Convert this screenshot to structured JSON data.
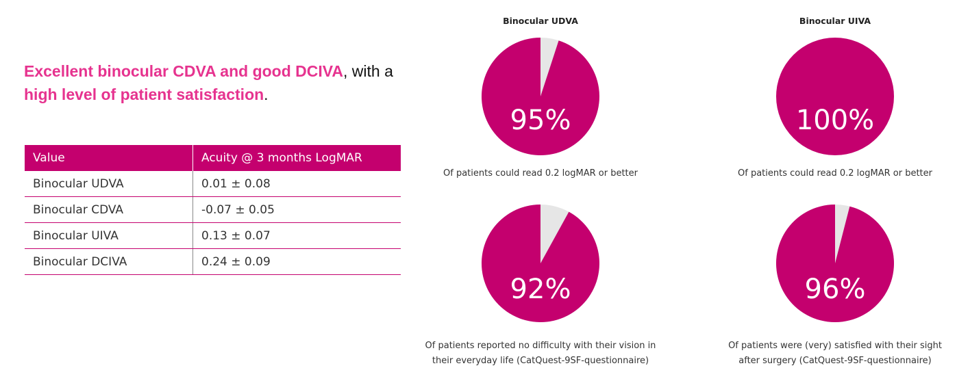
{
  "headline": {
    "part1_highlight": "Excellent binocular CDVA and good DCIVA",
    "part2_plain": ", with a",
    "part3_highlight": "high level of patient satisfaction",
    "part4_plain": "."
  },
  "table": {
    "headers": [
      "Value",
      "Acuity @ 3 months LogMAR"
    ],
    "rows": [
      [
        "Binocular UDVA",
        "0.01 ± 0.08"
      ],
      [
        "Binocular CDVA",
        "-0.07 ± 0.05"
      ],
      [
        "Binocular UIVA",
        "0.13 ± 0.07"
      ],
      [
        "Binocular DCIVA",
        "0.24 ± 0.09"
      ]
    ]
  },
  "colors": {
    "accent": "#c4006e",
    "highlight_text": "#e6338f",
    "remainder": "#e6e6e6"
  },
  "chart_data": [
    {
      "type": "pie",
      "title": "Binocular UDVA",
      "value": 95,
      "label": "95%",
      "caption": [
        "Of patients could read 0.2 logMAR or better"
      ]
    },
    {
      "type": "pie",
      "title": "Binocular UIVA",
      "value": 100,
      "label": "100%",
      "caption": [
        "Of patients could read 0.2 logMAR or better"
      ]
    },
    {
      "type": "pie",
      "title": "",
      "value": 92,
      "label": "92%",
      "caption": [
        "Of patients reported no difficulty with their vision in",
        "their everyday life (CatQuest-9SF-questionnaire)"
      ]
    },
    {
      "type": "pie",
      "title": "",
      "value": 96,
      "label": "96%",
      "caption": [
        "Of patients were (very) satisfied with their sight",
        "after surgery (CatQuest-9SF-questionnaire)"
      ]
    }
  ]
}
